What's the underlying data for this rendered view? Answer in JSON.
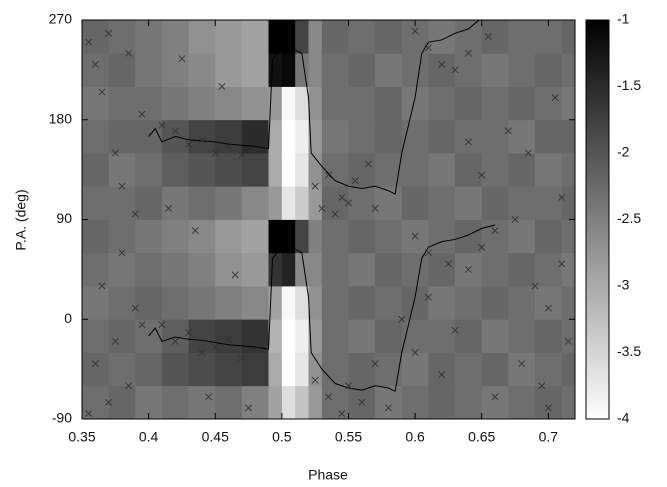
{
  "chart_data": {
    "type": "heatmap",
    "xlabel": "Phase",
    "ylabel": "P.A. (deg)",
    "xlim": [
      0.35,
      0.72
    ],
    "ylim": [
      -90,
      270
    ],
    "xticks": [
      0.35,
      0.4,
      0.45,
      0.5,
      0.55,
      0.6,
      0.65,
      0.7
    ],
    "yticks": [
      -90,
      0,
      90,
      180,
      270
    ],
    "heatmap": {
      "xbins": [
        0.35,
        0.37,
        0.39,
        0.41,
        0.43,
        0.45,
        0.47,
        0.49,
        0.5,
        0.51,
        0.52,
        0.53,
        0.55,
        0.57,
        0.59,
        0.61,
        0.63,
        0.65,
        0.67,
        0.69,
        0.71,
        0.72
      ],
      "ybins": [
        -90,
        -60,
        -30,
        0,
        30,
        60,
        90,
        120,
        150,
        180,
        210,
        240,
        270
      ],
      "z": [
        [
          -2.3,
          -2.2,
          -2.4,
          -2.3,
          -2.4,
          -2.3,
          -2.5,
          -2.9,
          -3.6,
          -3.3,
          -2.8,
          -2.3,
          -2.2,
          -2.4,
          -2.3,
          -2.2,
          -2.3,
          -2.4,
          -2.3,
          -2.2,
          -2.3
        ],
        [
          -2.2,
          -2.3,
          -2.2,
          -2.0,
          -1.9,
          -1.8,
          -1.7,
          -3.0,
          -4.0,
          -3.7,
          -2.7,
          -2.3,
          -2.2,
          -2.3,
          -2.4,
          -2.2,
          -2.3,
          -2.2,
          -2.4,
          -2.3,
          -2.2
        ],
        [
          -2.3,
          -2.2,
          -2.3,
          -2.1,
          -1.8,
          -1.7,
          -1.6,
          -3.1,
          -4.0,
          -3.8,
          -2.8,
          -2.3,
          -2.4,
          -2.2,
          -2.3,
          -2.3,
          -2.2,
          -2.4,
          -2.3,
          -2.2,
          -2.3
        ],
        [
          -2.4,
          -2.3,
          -2.2,
          -2.3,
          -2.4,
          -2.5,
          -2.6,
          -2.9,
          -3.9,
          -3.6,
          -2.7,
          -2.3,
          -2.2,
          -2.3,
          -2.2,
          -2.4,
          -2.3,
          -2.2,
          -2.3,
          -2.4,
          -2.3
        ],
        [
          -2.3,
          -2.4,
          -2.3,
          -2.4,
          -2.5,
          -2.7,
          -2.8,
          -1.6,
          -1.4,
          -2.6,
          -2.6,
          -2.3,
          -2.4,
          -2.2,
          -2.3,
          -2.2,
          -2.4,
          -2.3,
          -2.2,
          -2.3,
          -2.4
        ],
        [
          -2.2,
          -2.3,
          -2.4,
          -2.5,
          -2.6,
          -2.8,
          -2.9,
          -1.0,
          -1.0,
          -1.8,
          -2.5,
          -2.3,
          -2.2,
          -2.3,
          -2.4,
          -2.3,
          -2.2,
          -2.3,
          -2.4,
          -2.2,
          -2.3
        ],
        [
          -2.3,
          -2.3,
          -2.2,
          -2.4,
          -2.3,
          -2.4,
          -2.6,
          -2.8,
          -3.7,
          -3.4,
          -2.8,
          -2.2,
          -2.3,
          -2.4,
          -2.2,
          -2.3,
          -2.4,
          -2.2,
          -2.3,
          -2.3,
          -2.2
        ],
        [
          -2.2,
          -2.4,
          -2.3,
          -2.1,
          -2.0,
          -1.9,
          -1.8,
          -3.0,
          -4.0,
          -3.7,
          -2.7,
          -2.3,
          -2.2,
          -2.3,
          -2.3,
          -2.4,
          -2.2,
          -2.3,
          -2.2,
          -2.4,
          -2.3
        ],
        [
          -2.3,
          -2.2,
          -2.2,
          -2.0,
          -1.8,
          -1.7,
          -1.5,
          -3.0,
          -4.0,
          -3.8,
          -2.8,
          -2.4,
          -2.3,
          -2.2,
          -2.3,
          -2.2,
          -2.3,
          -2.3,
          -2.4,
          -2.2,
          -2.2
        ],
        [
          -2.4,
          -2.3,
          -2.3,
          -2.4,
          -2.5,
          -2.6,
          -2.7,
          -2.8,
          -3.9,
          -3.6,
          -2.7,
          -2.3,
          -2.3,
          -2.2,
          -2.4,
          -2.3,
          -2.2,
          -2.3,
          -2.2,
          -2.3,
          -2.4
        ],
        [
          -2.3,
          -2.2,
          -2.4,
          -2.5,
          -2.6,
          -2.8,
          -2.9,
          -1.2,
          -1.1,
          -2.4,
          -2.6,
          -2.3,
          -2.2,
          -2.4,
          -2.3,
          -2.2,
          -2.3,
          -2.4,
          -2.3,
          -2.2,
          -2.3
        ],
        [
          -2.2,
          -2.3,
          -2.4,
          -2.5,
          -2.7,
          -2.8,
          -2.9,
          -1.0,
          -1.0,
          -1.8,
          -2.6,
          -2.2,
          -2.3,
          -2.2,
          -2.3,
          -2.4,
          -2.3,
          -2.2,
          -2.3,
          -2.3,
          -2.2
        ]
      ],
      "clim": [
        -4,
        -1
      ],
      "cticks": [
        -4,
        -3.5,
        -3,
        -2.5,
        -2,
        -1.5,
        -1
      ],
      "colors": [
        "#ffffff",
        "#000000"
      ]
    },
    "lines": {
      "x": [
        0.4,
        0.405,
        0.41,
        0.42,
        0.43,
        0.44,
        0.45,
        0.46,
        0.47,
        0.48,
        0.49,
        0.493,
        0.5,
        0.51,
        0.515,
        0.52,
        0.522,
        0.53,
        0.54,
        0.55,
        0.56,
        0.57,
        0.58,
        0.585,
        0.59,
        0.6,
        0.605,
        0.61,
        0.62,
        0.63,
        0.64,
        0.65,
        0.66
      ],
      "series": [
        {
          "color": "#000000",
          "values": [
            165,
            172,
            160,
            165,
            162,
            161,
            160,
            158,
            157,
            156,
            154,
            235,
            245,
            243,
            240,
            200,
            150,
            138,
            125,
            120,
            118,
            120,
            116,
            113,
            150,
            200,
            240,
            250,
            252,
            258,
            262,
            272,
            275
          ]
        },
        {
          "color": "#000000",
          "values": [
            -15,
            -8,
            -20,
            -16,
            -18,
            -19,
            -21,
            -23,
            -24,
            -25,
            -27,
            55,
            65,
            63,
            60,
            20,
            -30,
            -45,
            -58,
            -62,
            -64,
            -60,
            -62,
            -65,
            -30,
            20,
            55,
            65,
            70,
            72,
            76,
            82,
            85
          ]
        }
      ]
    },
    "scatter": {
      "marker": "x",
      "color": "#333333",
      "x": [
        0.355,
        0.36,
        0.365,
        0.37,
        0.375,
        0.38,
        0.385,
        0.39,
        0.395,
        0.355,
        0.36,
        0.365,
        0.37,
        0.375,
        0.38,
        0.385,
        0.39,
        0.395,
        0.41,
        0.42,
        0.43,
        0.44,
        0.45,
        0.46,
        0.47,
        0.48,
        0.41,
        0.42,
        0.43,
        0.44,
        0.45,
        0.46,
        0.47,
        0.48,
        0.415,
        0.425,
        0.435,
        0.445,
        0.455,
        0.465,
        0.475,
        0.525,
        0.53,
        0.535,
        0.54,
        0.545,
        0.55,
        0.555,
        0.565,
        0.57,
        0.525,
        0.535,
        0.545,
        0.55,
        0.56,
        0.57,
        0.58,
        0.6,
        0.61,
        0.62,
        0.63,
        0.64,
        0.655,
        0.6,
        0.61,
        0.625,
        0.64,
        0.65,
        0.66,
        0.59,
        0.6,
        0.61,
        0.62,
        0.63,
        0.64,
        0.65,
        0.66,
        0.67,
        0.68,
        0.69,
        0.7,
        0.705,
        0.71,
        0.715,
        0.675,
        0.685,
        0.695,
        0.7,
        0.71
      ],
      "y": [
        250,
        230,
        205,
        258,
        150,
        120,
        240,
        95,
        185,
        -85,
        -40,
        30,
        -75,
        -20,
        60,
        -60,
        10,
        -5,
        175,
        170,
        158,
        162,
        150,
        155,
        148,
        152,
        -5,
        -20,
        -12,
        -30,
        -25,
        -18,
        -35,
        -28,
        100,
        235,
        80,
        -70,
        210,
        40,
        -80,
        120,
        100,
        130,
        95,
        110,
        105,
        125,
        140,
        100,
        -55,
        -70,
        -85,
        -60,
        -75,
        -40,
        -80,
        260,
        245,
        230,
        225,
        240,
        255,
        75,
        60,
        50,
        45,
        65,
        80,
        0,
        -30,
        20,
        -50,
        -10,
        160,
        130,
        -70,
        170,
        -40,
        30,
        -80,
        200,
        110,
        -20,
        90,
        150,
        -60,
        10,
        50
      ]
    }
  }
}
